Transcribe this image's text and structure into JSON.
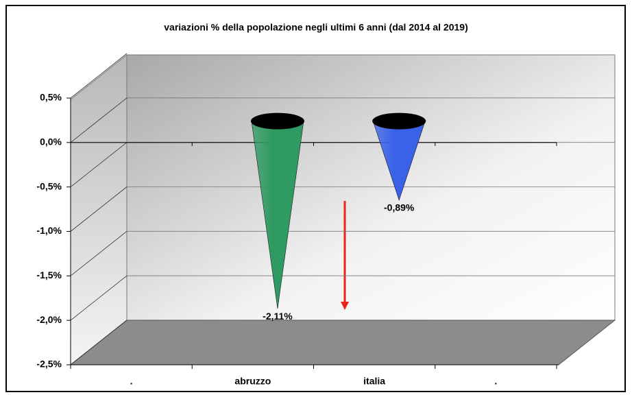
{
  "chart_data": {
    "type": "cone",
    "title": "variazioni % della popolazione negli ultimi 6 anni (dal 2014 al 2019)",
    "categories": [
      ".",
      "abruzzo",
      "italia",
      "."
    ],
    "values": [
      null,
      -2.11,
      -0.89,
      null
    ],
    "value_labels": [
      null,
      "-2,11%",
      "-0,89%",
      null
    ],
    "colors": [
      null,
      "#2f9a62",
      "#3a62e8",
      null
    ],
    "ylim": [
      -2.5,
      0.5
    ],
    "yticks": [
      {
        "value": 0.5,
        "label": "0,5%"
      },
      {
        "value": 0,
        "label": "0,0%"
      },
      {
        "value": -0.5,
        "label": "-0,5%"
      },
      {
        "value": -1,
        "label": "-1,0%"
      },
      {
        "value": -1.5,
        "label": "-1,5%"
      },
      {
        "value": -2,
        "label": "-2,0%"
      },
      {
        "value": -2.5,
        "label": "-2,5%"
      }
    ],
    "grid": true
  }
}
